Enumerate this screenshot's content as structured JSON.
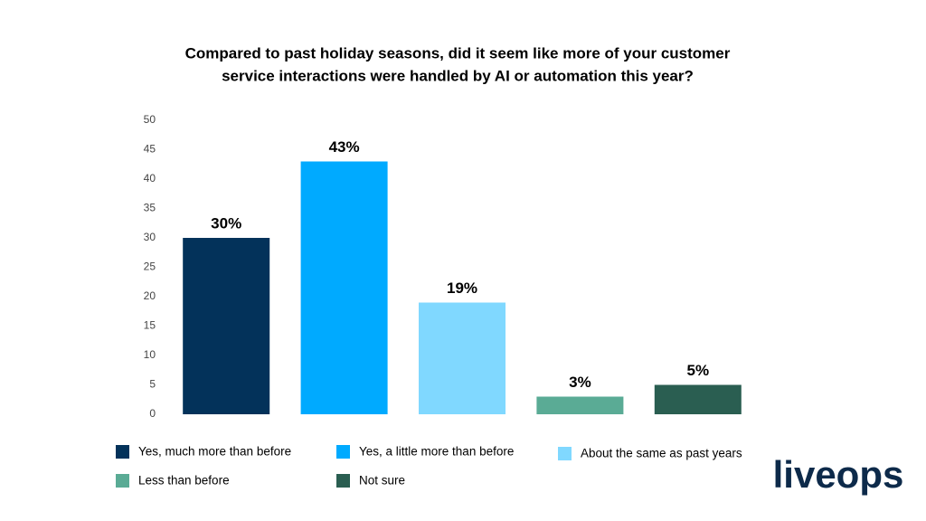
{
  "chart_data": {
    "type": "bar",
    "title": [
      "Compared to past holiday seasons, did it seem like more of your customer",
      "service interactions were handled by AI or automation this year?"
    ],
    "series": [
      {
        "name": "Yes, much more than before",
        "color": "#03325a",
        "values": [
          30
        ],
        "value_labels": [
          "30%"
        ]
      },
      {
        "name": "Yes, a little more than before",
        "color": "#00aaff",
        "values": [
          43
        ],
        "value_labels": [
          "43%"
        ]
      },
      {
        "name": "About the same as past years",
        "color": "#80d8ff",
        "values": [
          19
        ],
        "value_labels": [
          "19%"
        ]
      },
      {
        "name": "Less than before",
        "color": "#5aab95",
        "values": [
          3
        ],
        "value_labels": [
          "3%"
        ]
      },
      {
        "name": "Not sure",
        "color": "#2a5e51",
        "values": [
          5
        ],
        "value_labels": [
          "5%"
        ]
      }
    ],
    "ylim": [
      0,
      50
    ],
    "yticks": [
      0,
      5,
      10,
      15,
      20,
      25,
      30,
      35,
      40,
      45,
      50
    ],
    "grid": false
  },
  "brand": "liveops"
}
